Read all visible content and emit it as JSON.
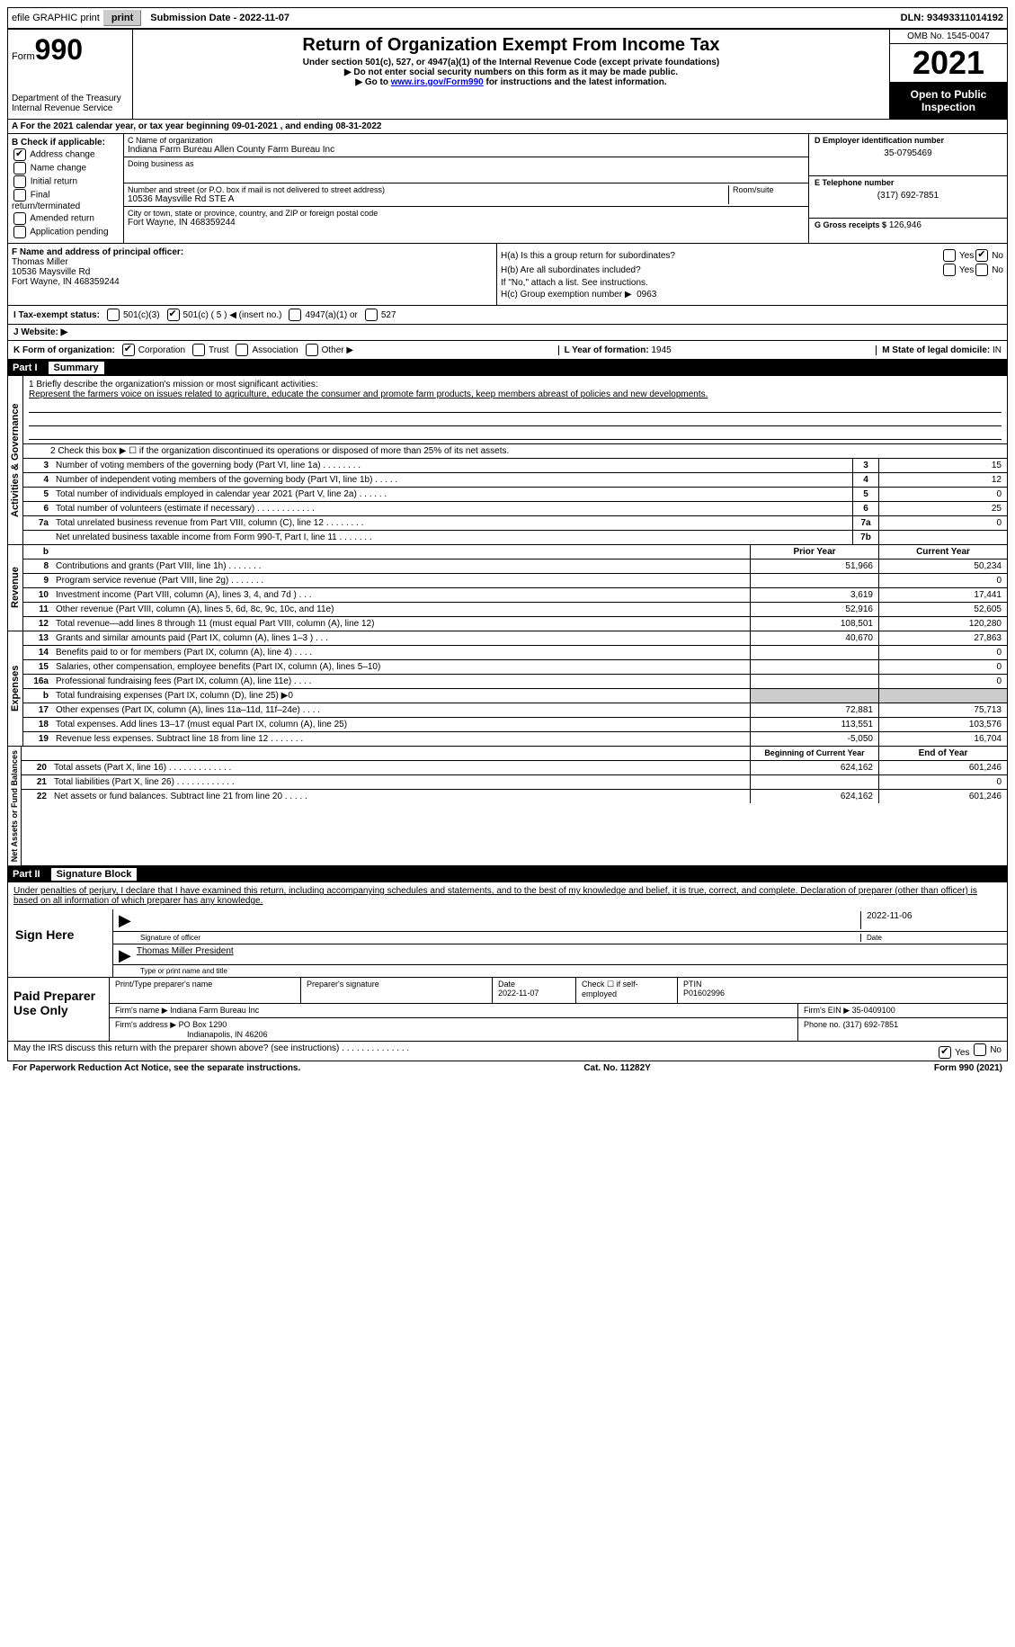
{
  "top": {
    "efile": "efile GRAPHIC print",
    "submission": "Submission Date - 2022-11-07",
    "dln": "DLN: 93493311014192"
  },
  "header": {
    "form_label": "Form",
    "form_no": "990",
    "dept": "Department of the Treasury",
    "irs": "Internal Revenue Service",
    "title": "Return of Organization Exempt From Income Tax",
    "subtitle": "Under section 501(c), 527, or 4947(a)(1) of the Internal Revenue Code (except private foundations)",
    "note1": "▶ Do not enter social security numbers on this form as it may be made public.",
    "note2_pre": "▶ Go to ",
    "note2_link": "www.irs.gov/Form990",
    "note2_post": " for instructions and the latest information.",
    "omb": "OMB No. 1545-0047",
    "year": "2021",
    "open": "Open to Public Inspection"
  },
  "rowA": "A For the 2021 calendar year, or tax year beginning 09-01-2021    , and ending 08-31-2022",
  "colB": {
    "title": "B Check if applicable:",
    "items": [
      "Address change",
      "Name change",
      "Initial return",
      "Final return/terminated",
      "Amended return",
      "Application pending"
    ],
    "checked": [
      true,
      false,
      false,
      false,
      false,
      false
    ]
  },
  "colC": {
    "name_label": "C Name of organization",
    "name": "Indiana Farm Bureau Allen County Farm Bureau Inc",
    "dba_label": "Doing business as",
    "addr_label": "Number and street (or P.O. box if mail is not delivered to street address)",
    "addr": "10536 Maysville Rd STE A",
    "room_label": "Room/suite",
    "city_label": "City or town, state or province, country, and ZIP or foreign postal code",
    "city": "Fort Wayne, IN  468359244"
  },
  "colD": {
    "ein_label": "D Employer identification number",
    "ein": "35-0795469",
    "phone_label": "E Telephone number",
    "phone": "(317) 692-7851",
    "gross_label": "G Gross receipts $",
    "gross": "126,946"
  },
  "colF": {
    "label": "F  Name and address of principal officer:",
    "name": "Thomas Miller",
    "addr1": "10536 Maysville Rd",
    "addr2": "Fort Wayne, IN  468359244"
  },
  "colH": {
    "ha": "H(a)  Is this a group return for subordinates?",
    "hb": "H(b)  Are all subordinates included?",
    "hb_note": "If \"No,\" attach a list. See instructions.",
    "hc": "H(c)  Group exemption number ▶",
    "hc_val": "0963",
    "yes": "Yes",
    "no": "No"
  },
  "rowI": {
    "label": "I   Tax-exempt status:",
    "opts": [
      "501(c)(3)",
      "501(c) ( 5 ) ◀ (insert no.)",
      "4947(a)(1) or",
      "527"
    ]
  },
  "rowJ": "J   Website: ▶",
  "rowK": {
    "label": "K Form of organization:",
    "opts": [
      "Corporation",
      "Trust",
      "Association",
      "Other ▶"
    ],
    "year_label": "L Year of formation:",
    "year": "1945",
    "state_label": "M State of legal domicile:",
    "state": "IN"
  },
  "part1": {
    "num": "Part I",
    "title": "Summary"
  },
  "mission": {
    "label": "1   Briefly describe the organization's mission or most significant activities:",
    "text": "Represent the farmers voice on issues related to agriculture, educate the consumer and promote farm products, keep members abreast of policies and new developments."
  },
  "line2": "2     Check this box ▶ ☐  if the organization discontinued its operations or disposed of more than 25% of its net assets.",
  "activities_label": "Activities & Governance",
  "revenue_label": "Revenue",
  "expenses_label": "Expenses",
  "netassets_label": "Net Assets or Fund Balances",
  "gov_rows": [
    {
      "n": "3",
      "d": "Number of voting members of the governing body (Part VI, line 1a)   .    .    .    .    .    .    .    .",
      "b": "3",
      "v": "15"
    },
    {
      "n": "4",
      "d": "Number of independent voting members of the governing body (Part VI, line 1b)   .    .    .    .    .",
      "b": "4",
      "v": "12"
    },
    {
      "n": "5",
      "d": "Total number of individuals employed in calendar year 2021 (Part V, line 2a)   .    .    .    .    .    .",
      "b": "5",
      "v": "0"
    },
    {
      "n": "6",
      "d": "Total number of volunteers (estimate if necessary)    .    .    .    .    .    .    .    .    .    .    .    .",
      "b": "6",
      "v": "25"
    },
    {
      "n": "7a",
      "d": "Total unrelated business revenue from Part VIII, column (C), line 12   .    .    .    .    .    .    .    .",
      "b": "7a",
      "v": "0"
    },
    {
      "n": "",
      "d": "Net unrelated business taxable income from Form 990-T, Part I, line 11   .    .    .    .    .    .    .",
      "b": "7b",
      "v": ""
    }
  ],
  "col_headers": {
    "prior": "Prior Year",
    "current": "Current Year"
  },
  "rev_rows": [
    {
      "n": "8",
      "d": "Contributions and grants (Part VIII, line 1h)   .    .    .    .    .    .    .",
      "p": "51,966",
      "c": "50,234"
    },
    {
      "n": "9",
      "d": "Program service revenue (Part VIII, line 2g)   .    .    .    .    .    .    .",
      "p": "",
      "c": "0"
    },
    {
      "n": "10",
      "d": "Investment income (Part VIII, column (A), lines 3, 4, and 7d )   .    .    .",
      "p": "3,619",
      "c": "17,441"
    },
    {
      "n": "11",
      "d": "Other revenue (Part VIII, column (A), lines 5, 6d, 8c, 9c, 10c, and 11e)",
      "p": "52,916",
      "c": "52,605"
    },
    {
      "n": "12",
      "d": "Total revenue—add lines 8 through 11 (must equal Part VIII, column (A), line 12)",
      "p": "108,501",
      "c": "120,280"
    }
  ],
  "exp_rows": [
    {
      "n": "13",
      "d": "Grants and similar amounts paid (Part IX, column (A), lines 1–3 )   .    .    .",
      "p": "40,670",
      "c": "27,863"
    },
    {
      "n": "14",
      "d": "Benefits paid to or for members (Part IX, column (A), line 4)   .    .    .    .",
      "p": "",
      "c": "0"
    },
    {
      "n": "15",
      "d": "Salaries, other compensation, employee benefits (Part IX, column (A), lines 5–10)",
      "p": "",
      "c": "0"
    },
    {
      "n": "16a",
      "d": "Professional fundraising fees (Part IX, column (A), line 11e)   .    .    .    .",
      "p": "",
      "c": "0"
    },
    {
      "n": "b",
      "d": "Total fundraising expenses (Part IX, column (D), line 25) ▶0",
      "p": "grey",
      "c": "grey"
    },
    {
      "n": "17",
      "d": "Other expenses (Part IX, column (A), lines 11a–11d, 11f–24e)   .    .    .    .",
      "p": "72,881",
      "c": "75,713"
    },
    {
      "n": "18",
      "d": "Total expenses. Add lines 13–17 (must equal Part IX, column (A), line 25)",
      "p": "113,551",
      "c": "103,576"
    },
    {
      "n": "19",
      "d": "Revenue less expenses. Subtract line 18 from line 12  .    .    .    .    .    .    .",
      "p": "-5,050",
      "c": "16,704"
    }
  ],
  "net_headers": {
    "beg": "Beginning of Current Year",
    "end": "End of Year"
  },
  "net_rows": [
    {
      "n": "20",
      "d": "Total assets (Part X, line 16)  .    .    .    .    .    .    .    .    .    .    .    .    .",
      "p": "624,162",
      "c": "601,246"
    },
    {
      "n": "21",
      "d": "Total liabilities (Part X, line 26)  .    .    .    .    .    .    .    .    .    .    .    .",
      "p": "",
      "c": "0"
    },
    {
      "n": "22",
      "d": "Net assets or fund balances. Subtract line 21 from line 20  .    .    .    .    .",
      "p": "624,162",
      "c": "601,246"
    }
  ],
  "part2": {
    "num": "Part II",
    "title": "Signature Block"
  },
  "sig_decl": "Under penalties of perjury, I declare that I have examined this return, including accompanying schedules and statements, and to the best of my knowledge and belief, it is true, correct, and complete. Declaration of preparer (other than officer) is based on all information of which preparer has any knowledge.",
  "sign_here": "Sign Here",
  "sig": {
    "date": "2022-11-06",
    "sig_label": "Signature of officer",
    "date_label": "Date",
    "name": "Thomas Miller President",
    "name_label": "Type or print name and title"
  },
  "paid": "Paid Preparer Use Only",
  "prep": {
    "name_label": "Print/Type preparer's name",
    "sig_label": "Preparer's signature",
    "date_label": "Date",
    "date": "2022-11-07",
    "check_label": "Check ☐ if self-employed",
    "ptin_label": "PTIN",
    "ptin": "P01602996",
    "firm_name_label": "Firm's name      ▶",
    "firm_name": "Indiana Farm Bureau Inc",
    "firm_ein_label": "Firm's EIN ▶",
    "firm_ein": "35-0409100",
    "firm_addr_label": "Firm's address ▶",
    "firm_addr1": "PO Box 1290",
    "firm_addr2": "Indianapolis, IN  46206",
    "phone_label": "Phone no.",
    "phone": "(317) 692-7851"
  },
  "discuss": "May the IRS discuss this return with the preparer shown above? (see instructions)   .    .    .    .    .    .    .    .    .    .    .    .    .    .",
  "footer": {
    "pra": "For Paperwork Reduction Act Notice, see the separate instructions.",
    "cat": "Cat. No. 11282Y",
    "form": "Form 990 (2021)"
  }
}
